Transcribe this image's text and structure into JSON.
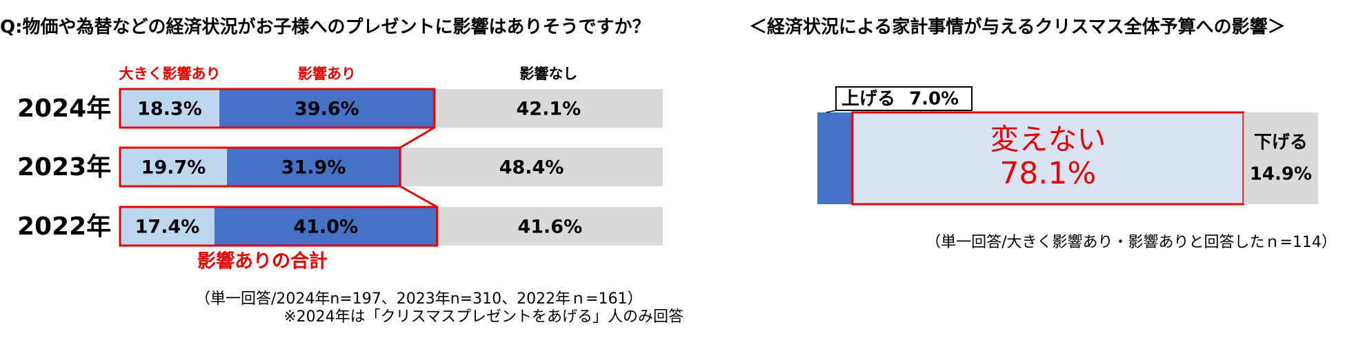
{
  "chart_data": [
    {
      "type": "bar",
      "orientation": "horizontal",
      "stacked": true,
      "title": "Q:物価や為替などの経済状況がお子様へのプレゼントに影響はありそうですか？",
      "categories": [
        "2024年",
        "2023年",
        "2022年"
      ],
      "series": [
        {
          "name": "大きく影響あり",
          "color": "#bdd7ee",
          "values": [
            18.3,
            19.7,
            17.4
          ],
          "value_labels": [
            "18.3%",
            "19.7%",
            "17.4%"
          ]
        },
        {
          "name": "影響あり",
          "color": "#4472c4",
          "values": [
            39.6,
            31.9,
            41.0
          ],
          "value_labels": [
            "39.6%",
            "31.9%",
            "41.0%"
          ]
        },
        {
          "name": "影響なし",
          "color": "#d9d9d9",
          "values": [
            42.1,
            48.4,
            41.6
          ],
          "value_labels": [
            "42.1%",
            "48.4%",
            "41.6%"
          ]
        }
      ],
      "annotation": "影響ありの合計",
      "notes": [
        "（単一回答/2024年n=197、2023年n=310、2022年ｎ=161）",
        "※2024年は「クリスマスプレゼントをあげる」人のみ回答"
      ]
    },
    {
      "type": "bar",
      "orientation": "horizontal",
      "stacked": true,
      "title": "＜経済状況による家計事情が与えるクリスマス全体予算への影響＞",
      "series": [
        {
          "name": "上げる",
          "color": "#4472c4",
          "values": [
            7.0
          ],
          "value_labels": [
            "7.0%"
          ]
        },
        {
          "name": "変えない",
          "color": "#dae3f3",
          "values": [
            78.1
          ],
          "value_labels": [
            "78.1%"
          ]
        },
        {
          "name": "下げる",
          "color": "#d9d9d9",
          "values": [
            14.9
          ],
          "value_labels": [
            "14.9%"
          ]
        }
      ],
      "notes": [
        "（単一回答/大きく影響あり・影響ありと回答したｎ=114）"
      ]
    }
  ]
}
